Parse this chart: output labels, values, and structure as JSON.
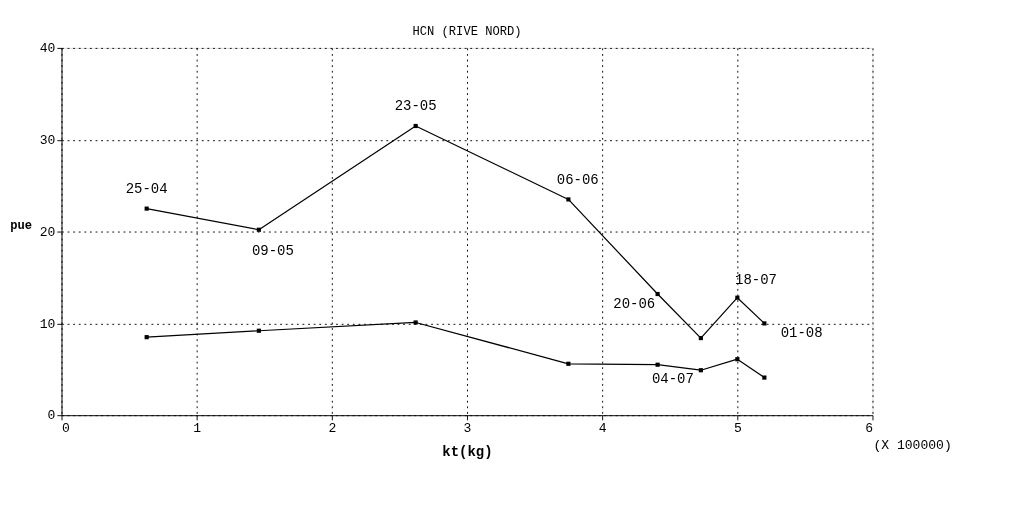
{
  "chart_data": {
    "type": "line",
    "title": "HCN (RIVE NORD)",
    "xlabel": "kt(kg)",
    "ylabel": "pue",
    "x": [
      0.63,
      1.46,
      2.62,
      3.75,
      4.41,
      4.73,
      5.0,
      5.2
    ],
    "series": [
      {
        "color": "#000000",
        "values": [
          22.5,
          20.2,
          31.5,
          23.5,
          13.2,
          8.4,
          12.8,
          10.0
        ]
      },
      {
        "color": "#000000",
        "values": [
          8.5,
          9.2,
          10.1,
          5.6,
          5.5,
          4.9,
          6.1,
          4.1
        ]
      }
    ],
    "xlim": [
      0,
      6
    ],
    "xticks": [
      0,
      1,
      2,
      3,
      4,
      5,
      6
    ],
    "ylim": [
      0,
      40
    ],
    "yticks": [
      0,
      10,
      20,
      30,
      40
    ],
    "grid": true,
    "marker": "square",
    "line_style": "solid",
    "annotations": [
      {
        "text": "25-04",
        "x": 0.63,
        "y": 22.5
      },
      {
        "text": "09-05",
        "x": 1.46,
        "y": 20.2
      },
      {
        "text": "23-05",
        "x": 2.62,
        "y": 31.5
      },
      {
        "text": "06-06",
        "x": 3.75,
        "y": 23.5
      },
      {
        "text": "20-06",
        "x": 4.41,
        "y": 13.2
      },
      {
        "text": "04-07",
        "x": 4.73,
        "y": 5.0
      },
      {
        "text": "18-07",
        "x": 5.0,
        "y": 12.8
      },
      {
        "text": "01-08",
        "x": 5.2,
        "y": 10.0
      },
      "(X 100000)"
    ]
  }
}
